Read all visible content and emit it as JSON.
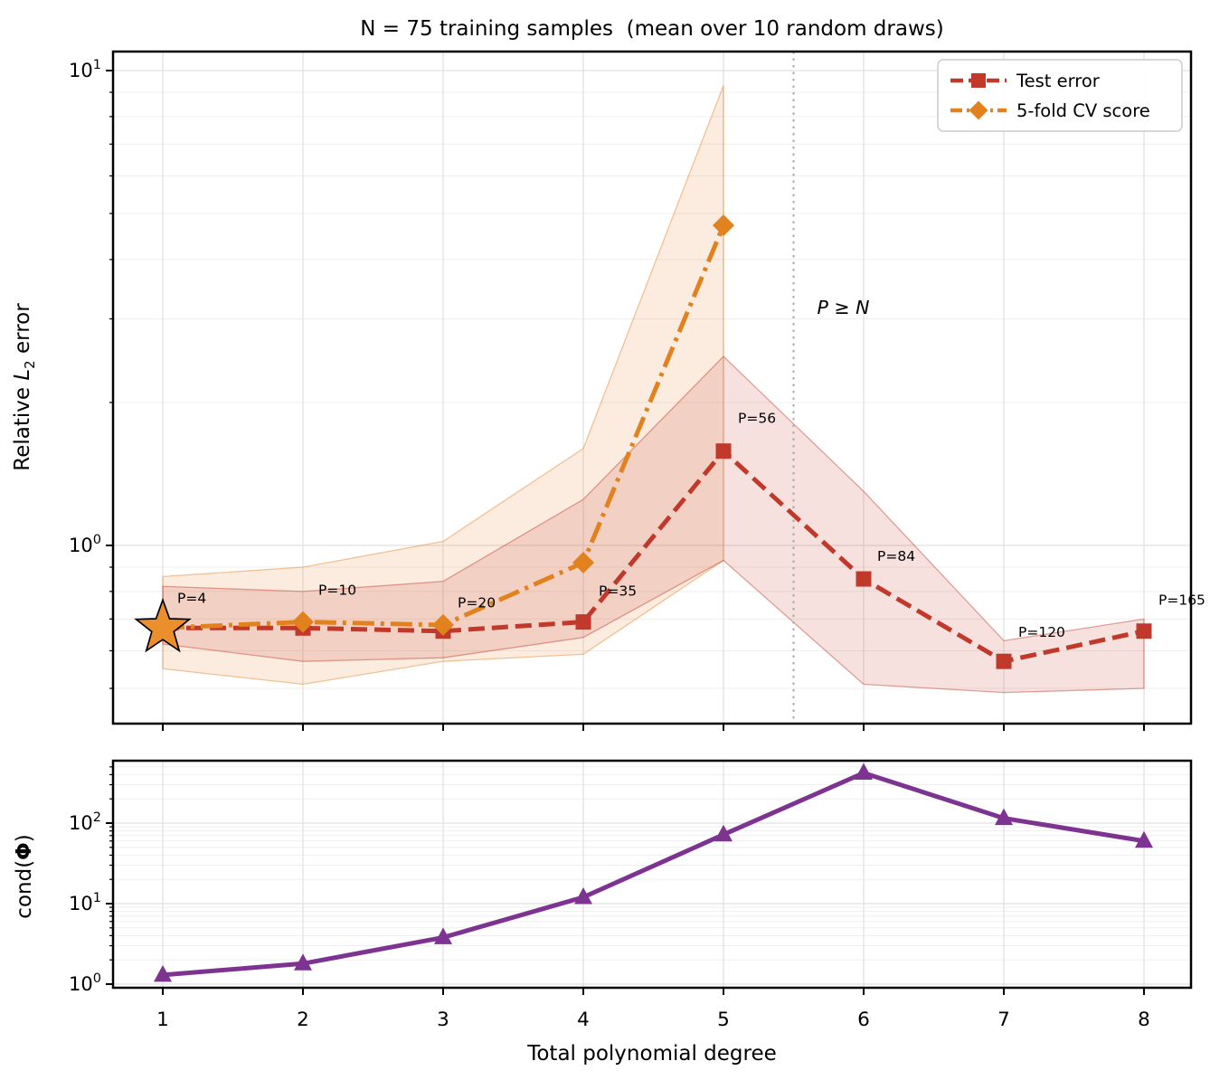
{
  "figure": {
    "title": "N = 75 training samples  (mean over 10 random draws)",
    "background": "#ffffff"
  },
  "colors": {
    "test_error": "#c0392b",
    "cv_score": "#e2821f",
    "cond_line": "#7d3390",
    "test_band_fill": "rgba(192,57,43,0.15)",
    "test_band_edge": "rgba(192,57,43,0.45)",
    "cv_band_fill": "rgba(226,130,43,0.15)",
    "cv_band_edge": "rgba(226,130,43,0.45)",
    "star_fill": "#eb8f2c",
    "star_edge": "#000000",
    "vline": "#a8a8a8",
    "vline_label": "#8a8a8a",
    "annotation": "#c0392b",
    "grid_major": "#e0e0e0",
    "grid_minor": "#efefef",
    "spine": "#000000",
    "legend_border": "#cccccc",
    "legend_bg": "rgba(255,255,255,0.9)"
  },
  "legend": {
    "items": [
      {
        "label": "Test error"
      },
      {
        "label": "5-fold CV score"
      }
    ]
  },
  "chart_data": [
    {
      "type": "line",
      "title": "N = 75 training samples  (mean over 10 random draws)",
      "xlabel": "",
      "ylabel": "Relative L₂ error",
      "yscale": "log",
      "ylim": [
        0.42,
        11
      ],
      "xlim": [
        0.64,
        8.34
      ],
      "grid": true,
      "legend_position": "upper right",
      "x": [
        1,
        2,
        3,
        4,
        5,
        6,
        7,
        8
      ],
      "series": [
        {
          "name": "Test error",
          "marker": "square",
          "linestyle": "dashed",
          "color": "#c0392b",
          "x": [
            1,
            2,
            3,
            4,
            5,
            6,
            7,
            8
          ],
          "values": [
            0.67,
            0.67,
            0.66,
            0.69,
            1.58,
            0.85,
            0.57,
            0.66
          ],
          "band_upper": [
            0.82,
            0.8,
            0.84,
            1.25,
            2.5,
            1.3,
            0.63,
            0.7
          ],
          "band_lower": [
            0.62,
            0.57,
            0.58,
            0.64,
            0.93,
            0.51,
            0.49,
            0.5
          ]
        },
        {
          "name": "5-fold CV score",
          "marker": "diamond",
          "linestyle": "dashdot",
          "color": "#e2821f",
          "x": [
            1,
            2,
            3,
            4,
            5
          ],
          "values": [
            0.67,
            0.69,
            0.68,
            0.92,
            4.72
          ],
          "band_upper": [
            0.86,
            0.9,
            1.02,
            1.6,
            9.3
          ],
          "band_lower": [
            0.55,
            0.51,
            0.57,
            0.59,
            0.93
          ]
        }
      ],
      "star_marker": {
        "x": 1,
        "y": 0.67
      },
      "vline": {
        "x": 5.5,
        "label": "P ≥ N"
      },
      "annotations": [
        {
          "text": "P=4",
          "degree": 1
        },
        {
          "text": "P=10",
          "degree": 2
        },
        {
          "text": "P=20",
          "degree": 3
        },
        {
          "text": "P=35",
          "degree": 4
        },
        {
          "text": "P=56",
          "degree": 5
        },
        {
          "text": "P=84",
          "degree": 6
        },
        {
          "text": "P=120",
          "degree": 7
        },
        {
          "text": "P=165",
          "degree": 8
        }
      ],
      "ytick_exponents": [
        0,
        1
      ],
      "xticklabels": []
    },
    {
      "type": "line",
      "title": "",
      "xlabel": "Total polynomial degree",
      "ylabel": "cond(Φ)",
      "yscale": "log",
      "ylim": [
        0.9,
        600
      ],
      "xlim": [
        0.64,
        8.34
      ],
      "grid": true,
      "x": [
        1,
        2,
        3,
        4,
        5,
        6,
        7,
        8
      ],
      "series": [
        {
          "name": "cond(Phi)",
          "marker": "triangle-up",
          "linestyle": "solid",
          "color": "#7d3390",
          "x": [
            1,
            2,
            3,
            4,
            5,
            6,
            7,
            8
          ],
          "values": [
            1.3,
            1.8,
            3.8,
            12,
            72,
            420,
            115,
            60
          ]
        }
      ],
      "ytick_exponents": [
        0,
        1,
        2
      ],
      "xticklabels": [
        "1",
        "2",
        "3",
        "4",
        "5",
        "6",
        "7",
        "8"
      ]
    }
  ]
}
